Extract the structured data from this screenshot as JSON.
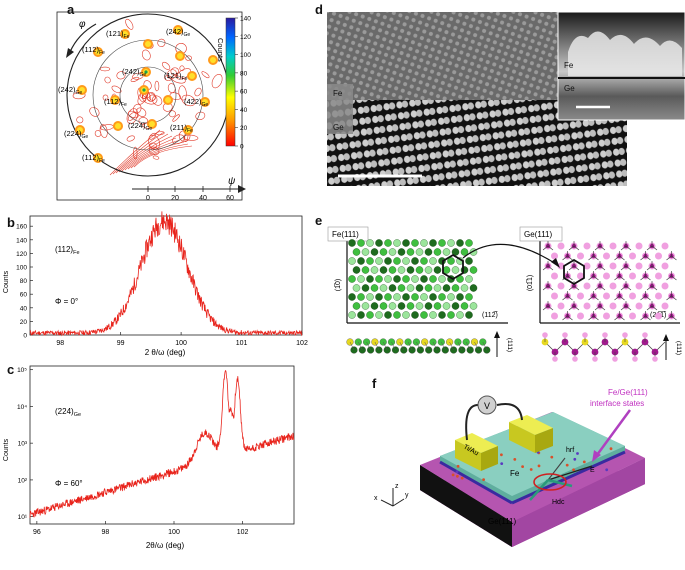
{
  "panels": {
    "a": "a",
    "b": "b",
    "c": "c",
    "d": "d",
    "e": "e",
    "f": "f"
  },
  "panel_a": {
    "phi_label": "φ",
    "psi_label": "ψ",
    "colorbar_label": "Counts",
    "colorbar_ticks": [
      "140",
      "120",
      "100",
      "80",
      "60",
      "40",
      "20",
      "0"
    ],
    "psi_ticks": [
      "0",
      "20",
      "40",
      "60"
    ],
    "spot_labels": [
      {
        "main": "(121)",
        "sub": "Fe"
      },
      {
        "main": "(242)",
        "sub": "Ge"
      },
      {
        "main": "(112)",
        "sub": "Fe"
      },
      {
        "main": "(242)",
        "sub": "Ge"
      },
      {
        "main": "(121)",
        "sub": "Fe"
      },
      {
        "main": "(112)",
        "sub": "Fe"
      },
      {
        "main": "(422)",
        "sub": "Ge"
      },
      {
        "main": "(242)",
        "sub": "Ge"
      },
      {
        "main": "(224)",
        "sub": "Ge"
      },
      {
        "main": "(211)",
        "sub": "Fe"
      },
      {
        "main": "(224)",
        "sub": "Ge"
      },
      {
        "main": "(112)",
        "sub": "Fe"
      }
    ],
    "colors": {
      "contour": "#e03a2a",
      "circle": "#222222"
    }
  },
  "chart_data": [
    {
      "type": "line",
      "annotation_main": "(112)",
      "annotation_sub": "Fe",
      "condition": "Φ = 0°",
      "xlabel": "2 θ/ω (deg)",
      "ylabel": "Counts",
      "xlim": [
        97.5,
        102
      ],
      "ylim": [
        0,
        175
      ],
      "x_ticks": [
        "98",
        "99",
        "100",
        "101",
        "102"
      ],
      "y_ticks": [
        "0",
        "20",
        "40",
        "60",
        "80",
        "100",
        "120",
        "140",
        "160"
      ],
      "peak": {
        "center": 99.72,
        "height": 165,
        "width": 0.38,
        "background": 3
      },
      "color": "#e8241c"
    },
    {
      "type": "line",
      "annotation_main": "(224)",
      "annotation_sub": "Ge",
      "condition": "Φ = 60°",
      "xlabel": "2θ/ω (deg)",
      "ylabel": "Counts",
      "xlim": [
        95.8,
        103.5
      ],
      "ylim_log": [
        0.7,
        1.4
      ],
      "x_ticks": [
        "96",
        "98",
        "100",
        "102"
      ],
      "y_ticks": [
        "10¹",
        "10²",
        "10³",
        "10⁴",
        "10⁵"
      ],
      "peaks": [
        {
          "center": 101.5,
          "height": 100000
        },
        {
          "center": 101.85,
          "height": 55000
        }
      ],
      "color": "#e8241c"
    }
  ],
  "panel_d": {
    "labels": {
      "fe_left": "Fe",
      "ge_left": "Ge",
      "fe_inset": "Fe",
      "ge_inset": "Ge"
    }
  },
  "panel_e": {
    "left_title": "Fe(111)",
    "right_title": "Ge(111)",
    "left_y_axis": "(1̅0)",
    "left_x_axis": "(112̅)",
    "right_y_axis": "(01̅1)",
    "right_x_axis": "(21̅1̅)",
    "left_side_axis": "(111)",
    "right_side_axis": "(111)",
    "colors": {
      "fe_dark": "#1e6b1e",
      "fe_mid": "#3fbf3f",
      "fe_light": "#9be59b",
      "ge_dark": "#a01a8c",
      "ge_light": "#f0a0e0",
      "yellow": "#e6d820"
    }
  },
  "panel_f": {
    "voltmeter": "V",
    "contact_label": "Ti/Au",
    "interface_title": "Fe/Ge(111)",
    "interface_subtitle": "interface states",
    "fe_label": "Fe",
    "ge_label": "Ge(111)",
    "hrf_label": "hrf",
    "e_label": "E",
    "hdc_label": "Hdc",
    "axis_z": "z",
    "axis_x": "x",
    "axis_y": "y",
    "colors": {
      "substrate": "#9a3a9a",
      "fe_layer": "#5fae9e",
      "contact": "#d8d82a",
      "interface_arrow": "#b040c0"
    }
  }
}
